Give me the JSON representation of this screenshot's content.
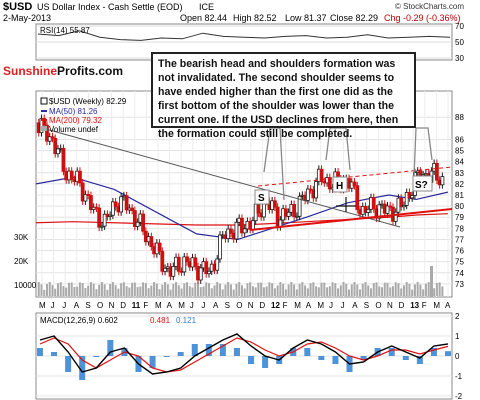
{
  "header": {
    "symbol": "$USD",
    "name": "US Dollar Index - Cash Settle (EOD)",
    "exchange": "ICE",
    "date": "2-May-2013",
    "open": "Open 82.44",
    "high": "High 82.52",
    "low": "Low 81.37",
    "close": "Close 82.29",
    "chg": "Chg -0.29 (-0.36%)",
    "source": "© StockCharts.com"
  },
  "logo": {
    "part1": "Sunshine",
    "part2": "Profits.com"
  },
  "annotation": {
    "text": "The bearish head and shoulders formation was not invalidated. The second shoulder seems to have ended higher than the first one did as the first bottom of the shoulder was lower than the current one. If the USD declines from here, then the formation could still be completed.",
    "labels": [
      "S",
      "H",
      "S?"
    ]
  },
  "colors": {
    "up": "#1a1a1a",
    "down": "#cc1111",
    "ma50": "#2a2aa0",
    "ma200": "#dd1111",
    "trend": "#e01010",
    "volume": "#a9a9a9",
    "macd": "#000000",
    "signal": "#e01010",
    "histogram": "#2f7fd0",
    "rsi": "#333333"
  },
  "chart_data": [
    {
      "type": "line",
      "title": "RSI(14) 55.87",
      "series": [
        {
          "name": "RSI(14)",
          "values": [
            60,
            58,
            64,
            56,
            53,
            52,
            55,
            54,
            61,
            57,
            56,
            55,
            57,
            58,
            55,
            56,
            59,
            55,
            56,
            57,
            55.87
          ]
        }
      ],
      "ylim": [
        30,
        70
      ],
      "yticks": [
        30,
        50,
        70
      ]
    },
    {
      "type": "line",
      "title": "$USD (Weekly) 82.29",
      "legend": [
        "$USD (Weekly) 82.29",
        "MA(50) 81.26",
        "MA(200) 79.32",
        "Volume undef"
      ],
      "x_labels": [
        "M",
        "J",
        "J",
        "A",
        "S",
        "O",
        "N",
        "D",
        "11",
        "F",
        "M",
        "A",
        "M",
        "J",
        "J",
        "A",
        "S",
        "O",
        "N",
        "D",
        "12",
        "F",
        "M",
        "A",
        "M",
        "J",
        "J",
        "A",
        "S",
        "O",
        "N",
        "D",
        "13",
        "F",
        "M",
        "A"
      ],
      "y_ticks": [
        73,
        74,
        75,
        76,
        77,
        78,
        79,
        80,
        81,
        82,
        83,
        84,
        85,
        86,
        88
      ],
      "volume_ticks": [
        "30K",
        "20K",
        "10000"
      ],
      "ylim": [
        72,
        90
      ],
      "series": [
        {
          "name": "$USD (Weekly)",
          "x": [
            2010.33,
            2010.45,
            2010.55,
            2010.65,
            2010.75,
            2010.83,
            2010.92,
            2011.0,
            2011.1,
            2011.2,
            2011.3,
            2011.4,
            2011.5,
            2011.6,
            2011.7,
            2011.8,
            2011.9,
            2012.0,
            2012.1,
            2012.2,
            2012.3,
            2012.4,
            2012.5,
            2012.6,
            2012.7,
            2012.8,
            2012.9,
            2013.0,
            2013.1,
            2013.2,
            2013.3
          ],
          "y": [
            87.5,
            86.0,
            83.0,
            82.0,
            79.5,
            78.5,
            80.5,
            80.0,
            78.0,
            76.0,
            74.0,
            75.0,
            74.5,
            74.0,
            77.5,
            78.0,
            78.5,
            80.5,
            79.0,
            79.5,
            81.0,
            82.5,
            82.0,
            82.5,
            79.5,
            80.0,
            79.5,
            80.0,
            82.5,
            83.0,
            82.29
          ]
        },
        {
          "name": "MA(50)",
          "x": [
            2010.33,
            2010.6,
            2010.9,
            2011.2,
            2011.5,
            2011.8,
            2012.0,
            2012.3,
            2012.6,
            2012.9,
            2013.1,
            2013.33
          ],
          "y": [
            82.0,
            82.6,
            81.5,
            79.5,
            77.5,
            77.0,
            77.8,
            79.0,
            80.3,
            81.0,
            80.6,
            81.26
          ]
        },
        {
          "name": "MA(200)",
          "x": [
            2010.33,
            2010.6,
            2010.9,
            2011.2,
            2011.5,
            2011.8,
            2012.0,
            2012.3,
            2012.6,
            2012.9,
            2013.1,
            2013.33
          ],
          "y": [
            78.5,
            78.6,
            78.5,
            78.4,
            78.3,
            78.3,
            78.4,
            78.6,
            78.8,
            79.0,
            79.2,
            79.32
          ]
        }
      ]
    },
    {
      "type": "line",
      "title": "MACD(12,26,9) 0.602, 0.481, 0.121",
      "legend": [
        "MACD(12,26,9) 0.602",
        "0.481",
        "0.121"
      ],
      "series": [
        {
          "name": "MACD",
          "values": [
            0.8,
            1.0,
            0.2,
            -0.8,
            -0.6,
            0.2,
            0.4,
            -0.4,
            -0.9,
            -0.8,
            -0.6,
            0.0,
            0.4,
            0.8,
            1.1,
            0.5,
            0.0,
            -0.2,
            0.4,
            0.8,
            0.6,
            0.2,
            -0.4,
            -0.3,
            0.2,
            0.5,
            0.2,
            -0.1,
            0.5,
            0.602
          ]
        },
        {
          "name": "Signal",
          "values": [
            0.6,
            0.9,
            0.6,
            -0.2,
            -0.6,
            -0.2,
            0.2,
            0.0,
            -0.6,
            -0.8,
            -0.7,
            -0.3,
            0.1,
            0.5,
            0.9,
            0.7,
            0.3,
            0.0,
            0.2,
            0.6,
            0.7,
            0.4,
            0.0,
            -0.2,
            0.0,
            0.3,
            0.3,
            0.1,
            0.3,
            0.481
          ]
        }
      ],
      "ylim": [
        -2,
        2
      ],
      "yticks": [
        -2,
        -1,
        0,
        1,
        2
      ]
    }
  ]
}
